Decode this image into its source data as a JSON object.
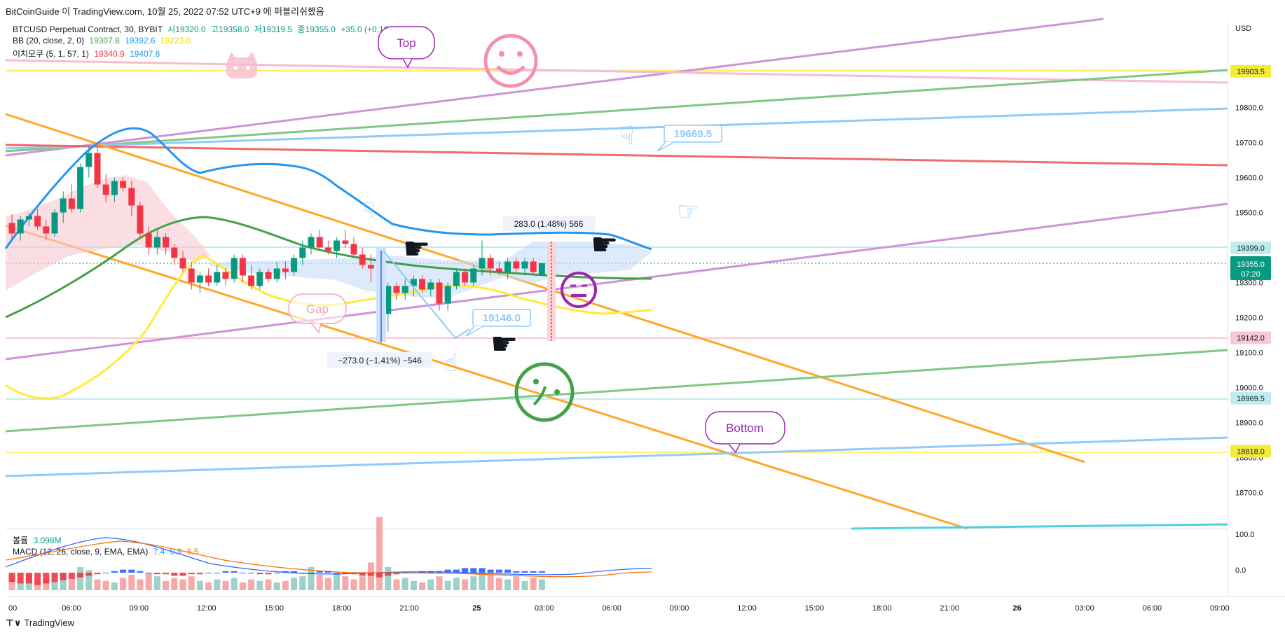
{
  "header": {
    "publish_line": "BitCoinGuide 이 TradingView.com, 10월 25, 2022 07:52 UTC+9 에 퍼블리쉬했음",
    "brand": "TradingView"
  },
  "legend": {
    "symbol_line": {
      "label": "BTCUSD Perpetual Contract, 30, BYBIT",
      "open": "시19320.0",
      "high": "고19358.0",
      "low": "저19319.5",
      "close": "종19355.0",
      "change": "+35.0 (+0.18%)"
    },
    "bb": {
      "label": "BB (20, close, 2, 0)",
      "basis": "19307.8",
      "upper": "19392.6",
      "lower": "19223.0"
    },
    "ichimoku": {
      "label": "이치모쿠 (5, 1, 57, 1)",
      "v1": "19340.9",
      "v2": "19407.8"
    },
    "volume": {
      "label": "볼륨",
      "value": "3.098M"
    },
    "macd": {
      "label": "MACD (12, 26, close, 9, EMA, EMA)",
      "v1": "7.4",
      "v2": "0.9",
      "v3": "6.5"
    }
  },
  "axis": {
    "currency": "USD",
    "price_ticks": [
      "19800.0",
      "19700.0",
      "19600.0",
      "19500.0",
      "19300.0",
      "19200.0",
      "19100.0",
      "19000.0",
      "18900.0",
      "18800.0",
      "18700.0"
    ],
    "price_badges": [
      {
        "text": "19903.5",
        "bg": "#f5eb3b",
        "fg": "#131722"
      },
      {
        "text": "19399.0",
        "bg": "#bfecef",
        "fg": "#131722"
      },
      {
        "text": "19142.0",
        "bg": "#f8c8d8",
        "fg": "#131722"
      },
      {
        "text": "18969.5",
        "bg": "#bfecef",
        "fg": "#131722"
      },
      {
        "text": "18818.0",
        "bg": "#f5eb3b",
        "fg": "#131722"
      }
    ],
    "current_price": {
      "price": "19355.0",
      "countdown": "07:20",
      "bg": "#089981"
    },
    "time_ticks": [
      "00",
      "06:00",
      "09:00",
      "12:00",
      "15:00",
      "18:00",
      "21:00",
      "25",
      "03:00",
      "06:00",
      "09:00",
      "12:00",
      "15:00",
      "18:00",
      "21:00",
      "26",
      "03:00",
      "06:00",
      "09:00"
    ],
    "macd_ticks": [
      "100.0",
      "0.0"
    ]
  },
  "annotations": {
    "callout_top": "Top",
    "callout_bottom": "Bottom",
    "callout_gap": "Gap",
    "price_label_1": "19669.5",
    "price_label_2": "19146.0",
    "measure_up": "283.0 (1.48%) 566",
    "measure_down": "−273.0 (−1.41%) −546"
  },
  "colors": {
    "up": "#089981",
    "down": "#f23645",
    "bb_basis": "#43a047",
    "bb_upper": "#2196f3",
    "bb_lower": "#ffeb3b",
    "orange_trend": "#ffa726",
    "purple_trend": "#ce93d8",
    "green_trend": "#81c784",
    "blue_trend": "#90caf9",
    "red_trend": "#ef5350"
  },
  "chart_data": {
    "type": "candlestick",
    "interval": "30m",
    "ylim": [
      18620,
      20060
    ],
    "x_labels": [
      "24 00:00",
      "06:00",
      "09:00",
      "12:00",
      "15:00",
      "18:00",
      "21:00",
      "25",
      "03:00",
      "06:00"
    ],
    "candles": [
      {
        "o": 19470,
        "h": 19495,
        "l": 19425,
        "c": 19440
      },
      {
        "o": 19440,
        "h": 19490,
        "l": 19420,
        "c": 19480
      },
      {
        "o": 19480,
        "h": 19500,
        "l": 19460,
        "c": 19490
      },
      {
        "o": 19490,
        "h": 19510,
        "l": 19450,
        "c": 19460
      },
      {
        "o": 19460,
        "h": 19480,
        "l": 19420,
        "c": 19440
      },
      {
        "o": 19440,
        "h": 19510,
        "l": 19430,
        "c": 19500
      },
      {
        "o": 19500,
        "h": 19560,
        "l": 19470,
        "c": 19540
      },
      {
        "o": 19540,
        "h": 19580,
        "l": 19500,
        "c": 19510
      },
      {
        "o": 19510,
        "h": 19640,
        "l": 19500,
        "c": 19630
      },
      {
        "o": 19630,
        "h": 19690,
        "l": 19600,
        "c": 19670
      },
      {
        "o": 19670,
        "h": 19690,
        "l": 19570,
        "c": 19580
      },
      {
        "o": 19580,
        "h": 19610,
        "l": 19530,
        "c": 19550
      },
      {
        "o": 19550,
        "h": 19600,
        "l": 19530,
        "c": 19590
      },
      {
        "o": 19590,
        "h": 19600,
        "l": 19560,
        "c": 19570
      },
      {
        "o": 19570,
        "h": 19590,
        "l": 19490,
        "c": 19520
      },
      {
        "o": 19520,
        "h": 19530,
        "l": 19430,
        "c": 19440
      },
      {
        "o": 19440,
        "h": 19460,
        "l": 19380,
        "c": 19400
      },
      {
        "o": 19400,
        "h": 19450,
        "l": 19380,
        "c": 19430
      },
      {
        "o": 19430,
        "h": 19440,
        "l": 19380,
        "c": 19400
      },
      {
        "o": 19400,
        "h": 19410,
        "l": 19350,
        "c": 19370
      },
      {
        "o": 19370,
        "h": 19390,
        "l": 19330,
        "c": 19340
      },
      {
        "o": 19340,
        "h": 19360,
        "l": 19280,
        "c": 19300
      },
      {
        "o": 19300,
        "h": 19330,
        "l": 19270,
        "c": 19320
      },
      {
        "o": 19320,
        "h": 19340,
        "l": 19290,
        "c": 19300
      },
      {
        "o": 19300,
        "h": 19350,
        "l": 19290,
        "c": 19330
      },
      {
        "o": 19330,
        "h": 19340,
        "l": 19290,
        "c": 19310
      },
      {
        "o": 19310,
        "h": 19380,
        "l": 19300,
        "c": 19370
      },
      {
        "o": 19370,
        "h": 19380,
        "l": 19300,
        "c": 19320
      },
      {
        "o": 19320,
        "h": 19350,
        "l": 19280,
        "c": 19290
      },
      {
        "o": 19290,
        "h": 19340,
        "l": 19280,
        "c": 19330
      },
      {
        "o": 19330,
        "h": 19340,
        "l": 19300,
        "c": 19310
      },
      {
        "o": 19310,
        "h": 19360,
        "l": 19300,
        "c": 19340
      },
      {
        "o": 19340,
        "h": 19360,
        "l": 19310,
        "c": 19330
      },
      {
        "o": 19330,
        "h": 19380,
        "l": 19320,
        "c": 19370
      },
      {
        "o": 19370,
        "h": 19420,
        "l": 19350,
        "c": 19400
      },
      {
        "o": 19400,
        "h": 19440,
        "l": 19380,
        "c": 19430
      },
      {
        "o": 19430,
        "h": 19450,
        "l": 19390,
        "c": 19400
      },
      {
        "o": 19400,
        "h": 19420,
        "l": 19380,
        "c": 19390
      },
      {
        "o": 19390,
        "h": 19430,
        "l": 19370,
        "c": 19420
      },
      {
        "o": 19420,
        "h": 19450,
        "l": 19400,
        "c": 19410
      },
      {
        "o": 19410,
        "h": 19430,
        "l": 19370,
        "c": 19380
      },
      {
        "o": 19380,
        "h": 19400,
        "l": 19340,
        "c": 19350
      },
      {
        "o": 19350,
        "h": 19380,
        "l": 19300,
        "c": 19340
      },
      {
        "o": 19340,
        "h": 19360,
        "l": 19150,
        "c": 19210
      },
      {
        "o": 19210,
        "h": 19300,
        "l": 19160,
        "c": 19290
      },
      {
        "o": 19290,
        "h": 19300,
        "l": 19250,
        "c": 19270
      },
      {
        "o": 19270,
        "h": 19310,
        "l": 19250,
        "c": 19290
      },
      {
        "o": 19290,
        "h": 19320,
        "l": 19260,
        "c": 19310
      },
      {
        "o": 19310,
        "h": 19320,
        "l": 19270,
        "c": 19280
      },
      {
        "o": 19280,
        "h": 19310,
        "l": 19260,
        "c": 19300
      },
      {
        "o": 19300,
        "h": 19310,
        "l": 19220,
        "c": 19240
      },
      {
        "o": 19240,
        "h": 19300,
        "l": 19220,
        "c": 19290
      },
      {
        "o": 19290,
        "h": 19340,
        "l": 19280,
        "c": 19330
      },
      {
        "o": 19330,
        "h": 19340,
        "l": 19290,
        "c": 19300
      },
      {
        "o": 19300,
        "h": 19350,
        "l": 19290,
        "c": 19340
      },
      {
        "o": 19340,
        "h": 19420,
        "l": 19320,
        "c": 19370
      },
      {
        "o": 19370,
        "h": 19380,
        "l": 19320,
        "c": 19340
      },
      {
        "o": 19340,
        "h": 19360,
        "l": 19320,
        "c": 19330
      },
      {
        "o": 19330,
        "h": 19370,
        "l": 19310,
        "c": 19360
      },
      {
        "o": 19360,
        "h": 19370,
        "l": 19330,
        "c": 19340
      },
      {
        "o": 19340,
        "h": 19370,
        "l": 19320,
        "c": 19360
      },
      {
        "o": 19360,
        "h": 19370,
        "l": 19320,
        "c": 19330
      },
      {
        "o": 19320,
        "h": 19358,
        "l": 19319.5,
        "c": 19355
      }
    ],
    "volume": [
      18,
      12,
      20,
      10,
      14,
      12,
      22,
      16,
      30,
      26,
      14,
      12,
      10,
      16,
      20,
      14,
      22,
      18,
      12,
      16,
      14,
      18,
      12,
      10,
      14,
      12,
      16,
      10,
      14,
      12,
      14,
      10,
      12,
      16,
      18,
      30,
      20,
      16,
      22,
      18,
      14,
      18,
      36,
      95,
      30,
      14,
      16,
      12,
      10,
      14,
      18,
      12,
      16,
      14,
      18,
      22,
      20,
      16,
      14,
      18,
      12,
      16,
      14
    ],
    "trend_lines": [
      {
        "name": "orange-upper",
        "from": [
          "24 00:00",
          19790
        ],
        "to": [
          "25 09:00",
          19195
        ]
      },
      {
        "name": "orange-lower",
        "from": [
          "24 00:00",
          19485
        ],
        "to": [
          "26 00:00",
          18620
        ]
      },
      {
        "name": "purple-rising",
        "from": [
          "24 00:00",
          19092
        ],
        "to": [
          "26 09:00",
          19525
        ]
      },
      {
        "name": "purple-top",
        "from": [
          "24 00:00",
          19650
        ],
        "to": [
          "26 03:00",
          20060
        ]
      }
    ],
    "horizontal_levels": [
      19903.5,
      19399.0,
      19142.0,
      18969.5,
      18818.0
    ]
  }
}
